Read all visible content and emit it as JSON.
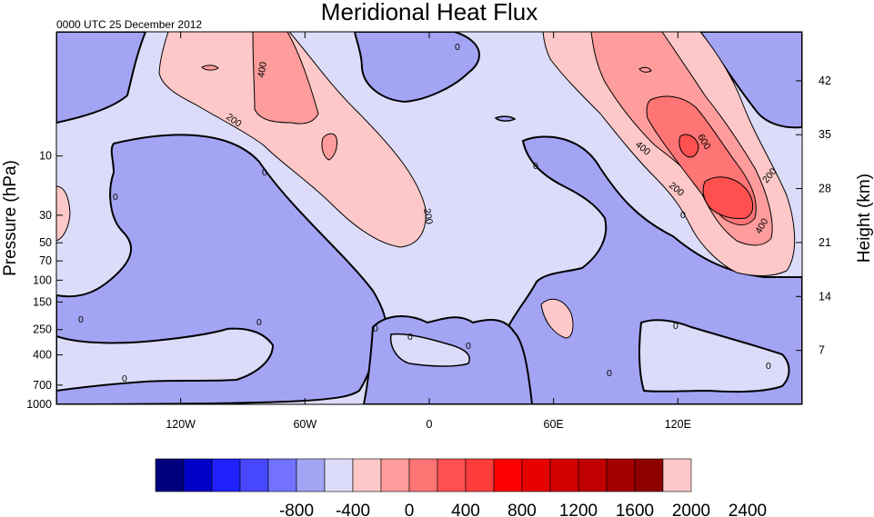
{
  "chart_data": {
    "type": "heatmap",
    "title": "Meridional Heat Flux",
    "subtitle": "0000 UTC 25 December 2012",
    "xlabel": "",
    "ylabel": "Pressure (hPa)",
    "y2label": "Height (km)",
    "x_ticks": [
      {
        "value": -120,
        "label": "120W"
      },
      {
        "value": -60,
        "label": "60W"
      },
      {
        "value": 0,
        "label": "0"
      },
      {
        "value": 60,
        "label": "60E"
      },
      {
        "value": 120,
        "label": "120E"
      }
    ],
    "xlim": [
      -180,
      180
    ],
    "y_scale": "log",
    "ylim": [
      1000,
      1
    ],
    "y_ticks": [
      {
        "value": 10,
        "label": "10"
      },
      {
        "value": 30,
        "label": "30"
      },
      {
        "value": 50,
        "label": "50"
      },
      {
        "value": 70,
        "label": "70"
      },
      {
        "value": 100,
        "label": "100"
      },
      {
        "value": 150,
        "label": "150"
      },
      {
        "value": 250,
        "label": "250"
      },
      {
        "value": 400,
        "label": "400"
      },
      {
        "value": 700,
        "label": "700"
      },
      {
        "value": 1000,
        "label": "1000"
      }
    ],
    "y2_ticks": [
      {
        "value": 42,
        "label": "42"
      },
      {
        "value": 35,
        "label": "35"
      },
      {
        "value": 28,
        "label": "28"
      },
      {
        "value": 21,
        "label": "21"
      },
      {
        "value": 14,
        "label": "14"
      },
      {
        "value": 7,
        "label": "7"
      }
    ],
    "contour_labels": [
      "0",
      "200",
      "400",
      "600"
    ],
    "colorbar": {
      "colors": [
        "#00007f",
        "#0000c8",
        "#2020ff",
        "#4848ff",
        "#7272ff",
        "#a4a4f4",
        "#dcdcfa",
        "#ffc8c8",
        "#ff9c9c",
        "#ff7474",
        "#ff5050",
        "#ff3c3c",
        "#ff0000",
        "#e60000",
        "#d40000",
        "#c00000",
        "#a40000",
        "#8c0000",
        "#ffc8c8"
      ],
      "tick_labels": [
        "-800",
        "-400",
        "0",
        "400",
        "800",
        "1200",
        "1600",
        "2000",
        "2400"
      ]
    }
  }
}
